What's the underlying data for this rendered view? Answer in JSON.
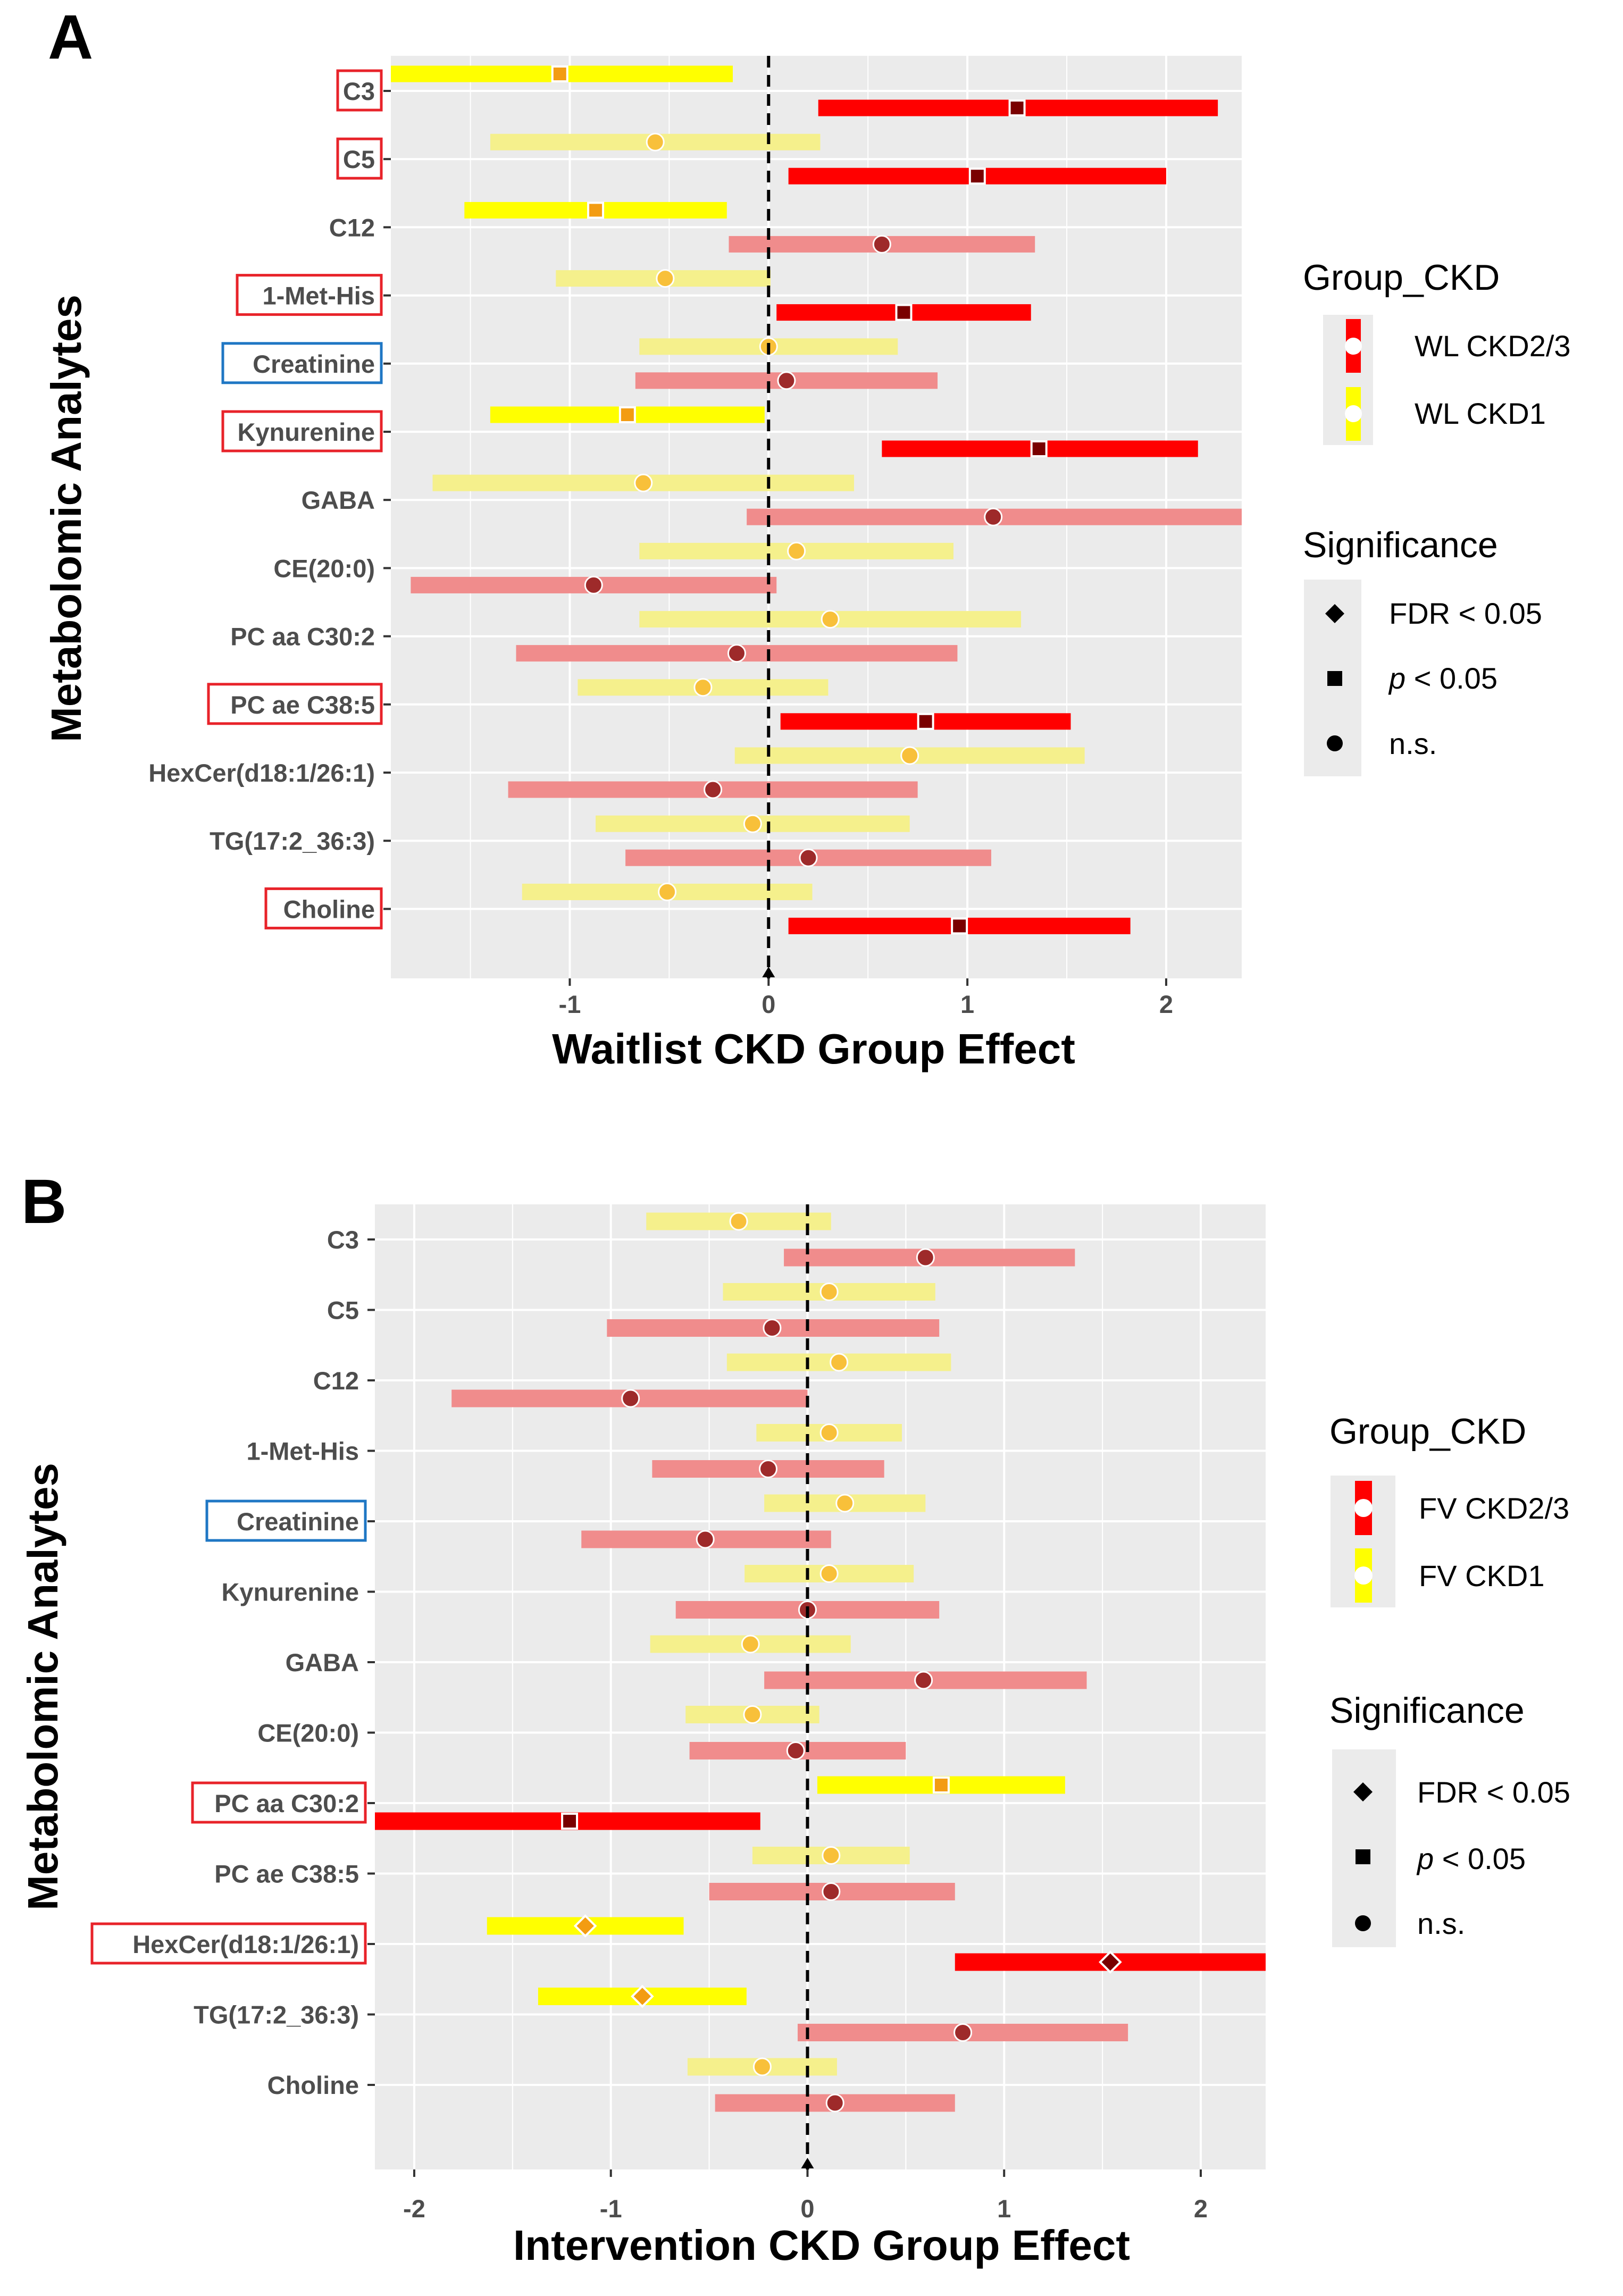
{
  "chart_data": [
    {
      "panel": "A",
      "type": "forest",
      "title": "",
      "xlabel": "Waitlist CKD Group Effect",
      "ylabel": "Metabolomic Analytes",
      "xlim": [
        -1.9,
        2.38
      ],
      "xticks": [
        -1,
        0,
        1,
        2
      ],
      "xtick_labels": [
        "-1",
        "0",
        "1",
        "2"
      ],
      "categories": [
        "C3",
        "C5",
        "C12",
        "1-Met-His",
        "Creatinine",
        "Kynurenine",
        "GABA",
        "CE(20:0)",
        "PC aa C30:2",
        "PC ae C38:5",
        "HexCer(d18:1/26:1)",
        "TG(17:2_36:3)",
        "Choline"
      ],
      "highlight": [
        "red",
        "red",
        "none",
        "red",
        "blue",
        "red",
        "none",
        "none",
        "none",
        "red",
        "none",
        "none",
        "red"
      ],
      "series": [
        {
          "name": "WL CKD1",
          "estimate": [
            -1.05,
            -0.57,
            -0.87,
            -0.52,
            0.0,
            -0.71,
            -0.63,
            0.14,
            0.31,
            -0.33,
            0.71,
            -0.08,
            -0.51
          ],
          "lower": [
            -1.9,
            -1.4,
            -1.53,
            -1.07,
            -0.65,
            -1.4,
            -1.69,
            -0.65,
            -0.65,
            -0.96,
            -0.17,
            -0.87,
            -1.24
          ],
          "upper": [
            -0.18,
            0.26,
            -0.21,
            0.01,
            0.65,
            -0.02,
            0.43,
            0.93,
            1.27,
            0.3,
            1.59,
            0.71,
            0.22
          ],
          "significance": [
            "p < 0.05",
            "n.s.",
            "p < 0.05",
            "n.s.",
            "n.s.",
            "p < 0.05",
            "n.s.",
            "n.s.",
            "n.s.",
            "n.s.",
            "n.s.",
            "n.s.",
            "n.s."
          ]
        },
        {
          "name": "WL CKD2/3",
          "estimate": [
            1.25,
            1.05,
            0.57,
            0.68,
            0.09,
            1.36,
            1.13,
            -0.88,
            -0.16,
            0.79,
            -0.28,
            0.2,
            0.96
          ],
          "lower": [
            0.25,
            0.1,
            -0.2,
            0.04,
            -0.67,
            0.57,
            -0.11,
            -1.8,
            -1.27,
            0.06,
            -1.31,
            -0.72,
            0.1
          ],
          "upper": [
            2.26,
            2.0,
            1.34,
            1.32,
            0.85,
            2.16,
            2.38,
            0.04,
            0.95,
            1.52,
            0.75,
            1.12,
            1.82
          ],
          "significance": [
            "p < 0.05",
            "p < 0.05",
            "n.s.",
            "p < 0.05",
            "n.s.",
            "p < 0.05",
            "n.s.",
            "n.s.",
            "n.s.",
            "p < 0.05",
            "n.s.",
            "n.s.",
            "p < 0.05"
          ]
        }
      ]
    },
    {
      "panel": "B",
      "type": "forest",
      "title": "",
      "xlabel": "Intervention CKD Group Effect",
      "ylabel": "Metabolomic Analytes",
      "xlim": [
        -2.2,
        2.33
      ],
      "xticks": [
        -2,
        -1,
        0,
        1,
        2
      ],
      "xtick_labels": [
        "-2",
        "-1",
        "0",
        "1",
        "2"
      ],
      "categories": [
        "C3",
        "C5",
        "C12",
        "1-Met-His",
        "Creatinine",
        "Kynurenine",
        "GABA",
        "CE(20:0)",
        "PC aa C30:2",
        "PC ae C38:5",
        "HexCer(d18:1/26:1)",
        "TG(17:2_36:3)",
        "Choline"
      ],
      "highlight": [
        "none",
        "none",
        "none",
        "none",
        "blue",
        "none",
        "none",
        "none",
        "red",
        "none",
        "red",
        "none",
        "none"
      ],
      "series": [
        {
          "name": "FV CKD1",
          "estimate": [
            -0.35,
            0.11,
            0.16,
            0.11,
            0.19,
            0.11,
            -0.29,
            -0.28,
            0.68,
            0.12,
            -1.13,
            -0.84,
            -0.23
          ],
          "lower": [
            -0.82,
            -0.43,
            -0.41,
            -0.26,
            -0.22,
            -0.32,
            -0.8,
            -0.62,
            0.05,
            -0.28,
            -1.63,
            -1.37,
            -0.61
          ],
          "upper": [
            0.12,
            0.65,
            0.73,
            0.48,
            0.6,
            0.54,
            0.22,
            0.06,
            1.31,
            0.52,
            -0.63,
            -0.31,
            0.15
          ],
          "significance": [
            "n.s.",
            "n.s.",
            "n.s.",
            "n.s.",
            "n.s.",
            "n.s.",
            "n.s.",
            "n.s.",
            "p < 0.05",
            "n.s.",
            "FDR < 0.05",
            "FDR < 0.05",
            "n.s."
          ]
        },
        {
          "name": "FV CKD2/3",
          "estimate": [
            0.6,
            -0.18,
            -0.9,
            -0.2,
            -0.52,
            0.0,
            0.59,
            -0.06,
            -1.21,
            0.12,
            1.54,
            0.79,
            0.14
          ],
          "lower": [
            -0.12,
            -1.02,
            -1.81,
            -0.79,
            -1.15,
            -0.67,
            -0.22,
            -0.6,
            -2.2,
            -0.5,
            0.75,
            -0.05,
            -0.47
          ],
          "upper": [
            1.36,
            0.67,
            0.0,
            0.39,
            0.12,
            0.67,
            1.42,
            0.5,
            -0.24,
            0.75,
            2.33,
            1.63,
            0.75
          ],
          "significance": [
            "n.s.",
            "n.s.",
            "n.s.",
            "n.s.",
            "n.s.",
            "n.s.",
            "n.s.",
            "n.s.",
            "p < 0.05",
            "n.s.",
            "FDR < 0.05",
            "n.s.",
            "n.s."
          ]
        }
      ]
    }
  ],
  "legend": {
    "A": {
      "group_title": "Group_CKD",
      "group_items": [
        {
          "label": "WL CKD2/3",
          "color": "#ff0000"
        },
        {
          "label": "WL CKD1",
          "color": "#ffff00"
        }
      ],
      "sig_title": "Significance",
      "sig_items": [
        {
          "label": "FDR < 0.05",
          "shape": "diamond"
        },
        {
          "prefix": "p",
          "label": " < 0.05",
          "shape": "square"
        },
        {
          "label": "n.s.",
          "shape": "circle"
        }
      ]
    },
    "B": {
      "group_title": "Group_CKD",
      "group_items": [
        {
          "label": "FV CKD2/3",
          "color": "#ff0000"
        },
        {
          "label": "FV CKD1",
          "color": "#ffff00"
        }
      ],
      "sig_title": "Significance",
      "sig_items": [
        {
          "label": "FDR < 0.05",
          "shape": "diamond"
        },
        {
          "prefix": "p",
          "label": " < 0.05",
          "shape": "square"
        },
        {
          "label": "n.s.",
          "shape": "circle"
        }
      ]
    }
  },
  "panel_labels": {
    "A": "A",
    "B": "B"
  },
  "colors": {
    "red_sig": "#ff0000",
    "red_ns": "#f08c8c",
    "yellow_sig": "#ffff00",
    "yellow_ns": "#f5f08c",
    "red_marker_sig": "#7a0000",
    "red_marker_ns": "#9e2a2a",
    "yellow_marker_sig": "#f39c12",
    "yellow_marker_ns": "#f8c03a",
    "panel_bg": "#ebebeb",
    "grid": "#ffffff",
    "highlight_red": "#e8232a",
    "highlight_blue": "#1f77c4"
  }
}
